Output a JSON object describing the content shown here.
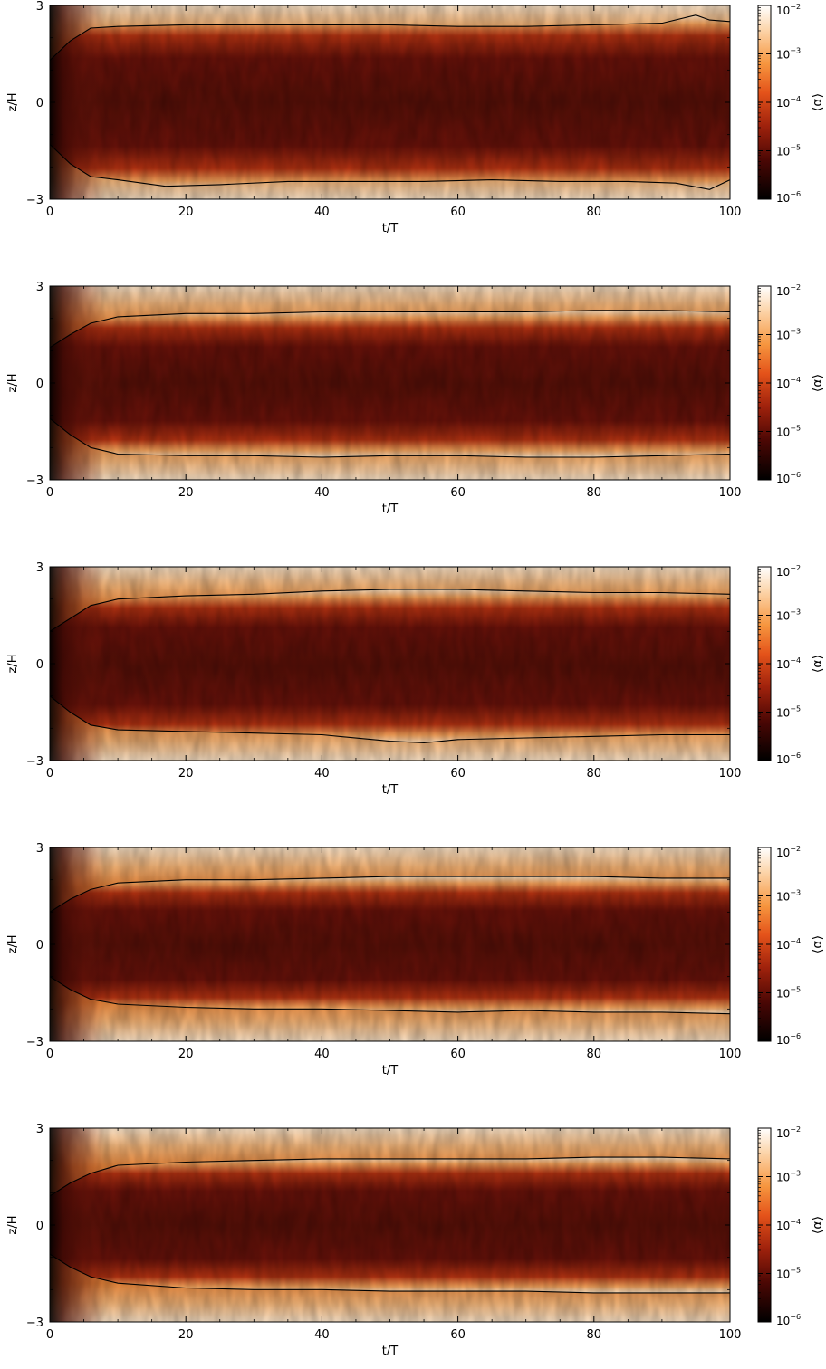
{
  "chart_data": [
    {
      "type": "heatmap",
      "xlabel": "t/T",
      "ylabel": "z/H",
      "colorbar_label": "⟨α⟩",
      "xlim": [
        0,
        100
      ],
      "ylim": [
        -3,
        3
      ],
      "x_ticks": [
        "0",
        "20",
        "40",
        "60",
        "80",
        "100"
      ],
      "y_ticks": [
        "−3",
        "0",
        "3"
      ],
      "colorbar_ticks": [
        {
          "base": "10",
          "exp": "−2"
        },
        {
          "base": "10",
          "exp": "−3"
        },
        {
          "base": "10",
          "exp": "−4"
        },
        {
          "base": "10",
          "exp": "−5"
        },
        {
          "base": "10",
          "exp": "−6"
        }
      ],
      "colorbar_range": [
        1e-06,
        0.01
      ],
      "colormap": "heat (black-red-orange-white)",
      "contour_upper": [
        [
          0,
          1.3
        ],
        [
          3,
          1.9
        ],
        [
          6,
          2.3
        ],
        [
          10,
          2.35
        ],
        [
          20,
          2.4
        ],
        [
          30,
          2.4
        ],
        [
          40,
          2.4
        ],
        [
          50,
          2.4
        ],
        [
          60,
          2.35
        ],
        [
          70,
          2.35
        ],
        [
          80,
          2.4
        ],
        [
          90,
          2.45
        ],
        [
          95,
          2.7
        ],
        [
          97,
          2.55
        ],
        [
          100,
          2.5
        ]
      ],
      "contour_lower": [
        [
          0,
          -1.3
        ],
        [
          3,
          -1.9
        ],
        [
          6,
          -2.3
        ],
        [
          10,
          -2.4
        ],
        [
          17,
          -2.6
        ],
        [
          25,
          -2.55
        ],
        [
          35,
          -2.45
        ],
        [
          45,
          -2.45
        ],
        [
          55,
          -2.45
        ],
        [
          65,
          -2.4
        ],
        [
          75,
          -2.45
        ],
        [
          85,
          -2.45
        ],
        [
          92,
          -2.5
        ],
        [
          97,
          -2.7
        ],
        [
          100,
          -2.4
        ]
      ]
    },
    {
      "type": "heatmap",
      "xlabel": "t/T",
      "ylabel": "z/H",
      "colorbar_label": "⟨α⟩",
      "xlim": [
        0,
        100
      ],
      "ylim": [
        -3,
        3
      ],
      "x_ticks": [
        "0",
        "20",
        "40",
        "60",
        "80",
        "100"
      ],
      "y_ticks": [
        "−3",
        "0",
        "3"
      ],
      "colorbar_ticks": [
        {
          "base": "10",
          "exp": "−2"
        },
        {
          "base": "10",
          "exp": "−3"
        },
        {
          "base": "10",
          "exp": "−4"
        },
        {
          "base": "10",
          "exp": "−5"
        },
        {
          "base": "10",
          "exp": "−6"
        }
      ],
      "colorbar_range": [
        1e-06,
        0.01
      ],
      "colormap": "heat (black-red-orange-white)",
      "contour_upper": [
        [
          0,
          1.1
        ],
        [
          3,
          1.5
        ],
        [
          6,
          1.85
        ],
        [
          10,
          2.05
        ],
        [
          20,
          2.15
        ],
        [
          30,
          2.15
        ],
        [
          40,
          2.2
        ],
        [
          50,
          2.2
        ],
        [
          60,
          2.2
        ],
        [
          70,
          2.2
        ],
        [
          80,
          2.25
        ],
        [
          90,
          2.25
        ],
        [
          100,
          2.2
        ]
      ],
      "contour_lower": [
        [
          0,
          -1.1
        ],
        [
          3,
          -1.6
        ],
        [
          6,
          -2.0
        ],
        [
          10,
          -2.2
        ],
        [
          20,
          -2.25
        ],
        [
          30,
          -2.25
        ],
        [
          40,
          -2.3
        ],
        [
          50,
          -2.25
        ],
        [
          60,
          -2.25
        ],
        [
          70,
          -2.3
        ],
        [
          80,
          -2.3
        ],
        [
          90,
          -2.25
        ],
        [
          100,
          -2.2
        ]
      ]
    },
    {
      "type": "heatmap",
      "xlabel": "t/T",
      "ylabel": "z/H",
      "colorbar_label": "⟨α⟩",
      "xlim": [
        0,
        100
      ],
      "ylim": [
        -3,
        3
      ],
      "x_ticks": [
        "0",
        "20",
        "40",
        "60",
        "80",
        "100"
      ],
      "y_ticks": [
        "−3",
        "0",
        "3"
      ],
      "colorbar_ticks": [
        {
          "base": "10",
          "exp": "−2"
        },
        {
          "base": "10",
          "exp": "−3"
        },
        {
          "base": "10",
          "exp": "−4"
        },
        {
          "base": "10",
          "exp": "−5"
        },
        {
          "base": "10",
          "exp": "−6"
        }
      ],
      "colorbar_range": [
        1e-06,
        0.01
      ],
      "colormap": "heat (black-red-orange-white)",
      "contour_upper": [
        [
          0,
          1.0
        ],
        [
          3,
          1.4
        ],
        [
          6,
          1.8
        ],
        [
          10,
          2.0
        ],
        [
          20,
          2.1
        ],
        [
          30,
          2.15
        ],
        [
          40,
          2.25
        ],
        [
          50,
          2.3
        ],
        [
          60,
          2.3
        ],
        [
          70,
          2.25
        ],
        [
          80,
          2.2
        ],
        [
          90,
          2.2
        ],
        [
          100,
          2.15
        ]
      ],
      "contour_lower": [
        [
          0,
          -1.0
        ],
        [
          3,
          -1.5
        ],
        [
          6,
          -1.9
        ],
        [
          10,
          -2.05
        ],
        [
          20,
          -2.1
        ],
        [
          30,
          -2.15
        ],
        [
          40,
          -2.2
        ],
        [
          50,
          -2.4
        ],
        [
          55,
          -2.45
        ],
        [
          60,
          -2.35
        ],
        [
          70,
          -2.3
        ],
        [
          80,
          -2.25
        ],
        [
          90,
          -2.2
        ],
        [
          100,
          -2.2
        ]
      ]
    },
    {
      "type": "heatmap",
      "xlabel": "t/T",
      "ylabel": "z/H",
      "colorbar_label": "⟨α⟩",
      "xlim": [
        0,
        100
      ],
      "ylim": [
        -3,
        3
      ],
      "x_ticks": [
        "0",
        "20",
        "40",
        "60",
        "80",
        "100"
      ],
      "y_ticks": [
        "−3",
        "0",
        "3"
      ],
      "colorbar_ticks": [
        {
          "base": "10",
          "exp": "−2"
        },
        {
          "base": "10",
          "exp": "−3"
        },
        {
          "base": "10",
          "exp": "−4"
        },
        {
          "base": "10",
          "exp": "−5"
        },
        {
          "base": "10",
          "exp": "−6"
        }
      ],
      "colorbar_range": [
        1e-06,
        0.01
      ],
      "colormap": "heat (black-red-orange-white)",
      "contour_upper": [
        [
          0,
          1.0
        ],
        [
          3,
          1.4
        ],
        [
          6,
          1.7
        ],
        [
          10,
          1.9
        ],
        [
          20,
          2.0
        ],
        [
          30,
          2.0
        ],
        [
          40,
          2.05
        ],
        [
          50,
          2.1
        ],
        [
          60,
          2.1
        ],
        [
          70,
          2.1
        ],
        [
          80,
          2.1
        ],
        [
          90,
          2.05
        ],
        [
          100,
          2.05
        ]
      ],
      "contour_lower": [
        [
          0,
          -1.0
        ],
        [
          3,
          -1.4
        ],
        [
          6,
          -1.7
        ],
        [
          10,
          -1.85
        ],
        [
          20,
          -1.95
        ],
        [
          30,
          -2.0
        ],
        [
          40,
          -2.0
        ],
        [
          50,
          -2.05
        ],
        [
          60,
          -2.1
        ],
        [
          70,
          -2.05
        ],
        [
          80,
          -2.1
        ],
        [
          90,
          -2.1
        ],
        [
          100,
          -2.15
        ]
      ]
    },
    {
      "type": "heatmap",
      "xlabel": "t/T",
      "ylabel": "z/H",
      "colorbar_label": "⟨α⟩",
      "xlim": [
        0,
        100
      ],
      "ylim": [
        -3,
        3
      ],
      "x_ticks": [
        "0",
        "20",
        "40",
        "60",
        "80",
        "100"
      ],
      "y_ticks": [
        "−3",
        "0",
        "3"
      ],
      "colorbar_ticks": [
        {
          "base": "10",
          "exp": "−2"
        },
        {
          "base": "10",
          "exp": "−3"
        },
        {
          "base": "10",
          "exp": "−4"
        },
        {
          "base": "10",
          "exp": "−5"
        },
        {
          "base": "10",
          "exp": "−6"
        }
      ],
      "colorbar_range": [
        1e-06,
        0.01
      ],
      "colormap": "heat (black-red-orange-white)",
      "contour_upper": [
        [
          0,
          0.9
        ],
        [
          3,
          1.3
        ],
        [
          6,
          1.6
        ],
        [
          10,
          1.85
        ],
        [
          20,
          1.95
        ],
        [
          30,
          2.0
        ],
        [
          40,
          2.05
        ],
        [
          50,
          2.05
        ],
        [
          60,
          2.05
        ],
        [
          70,
          2.05
        ],
        [
          80,
          2.1
        ],
        [
          90,
          2.1
        ],
        [
          100,
          2.05
        ]
      ],
      "contour_lower": [
        [
          0,
          -0.9
        ],
        [
          3,
          -1.3
        ],
        [
          6,
          -1.6
        ],
        [
          10,
          -1.8
        ],
        [
          20,
          -1.95
        ],
        [
          30,
          -2.0
        ],
        [
          40,
          -2.0
        ],
        [
          50,
          -2.05
        ],
        [
          60,
          -2.05
        ],
        [
          70,
          -2.05
        ],
        [
          80,
          -2.1
        ],
        [
          90,
          -2.1
        ],
        [
          100,
          -2.1
        ]
      ]
    }
  ]
}
